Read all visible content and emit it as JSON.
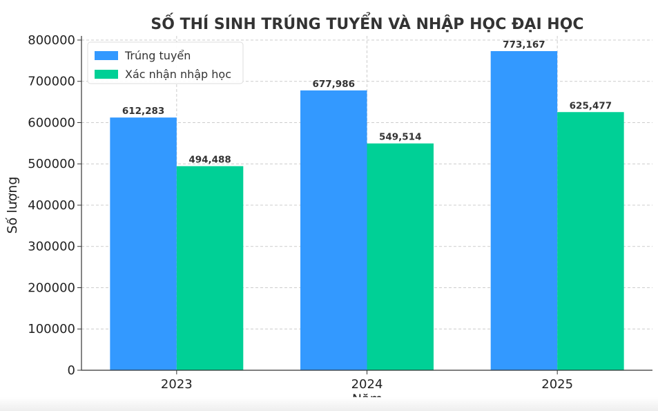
{
  "chart_data": {
    "type": "bar",
    "title": "SỐ THÍ SINH TRÚNG TUYỂN VÀ NHẬP HỌC ĐẠI HỌC",
    "xlabel": "Năm",
    "ylabel": "Số lượng",
    "categories": [
      "2023",
      "2024",
      "2025"
    ],
    "series": [
      {
        "name": "Trúng tuyển",
        "values": [
          612283,
          677986,
          773167
        ],
        "labels": [
          "612,283",
          "677,986",
          "773,167"
        ],
        "color": "#3399ff"
      },
      {
        "name": "Xác nhận nhập học",
        "values": [
          494488,
          549514,
          625477
        ],
        "labels": [
          "494,488",
          "549,514",
          "625,477"
        ],
        "color": "#00d096"
      }
    ],
    "ylim": [
      0,
      810000
    ],
    "yticks": [
      0,
      100000,
      200000,
      300000,
      400000,
      500000,
      600000,
      700000,
      800000
    ],
    "ytick_labels": [
      "0",
      "100000",
      "200000",
      "300000",
      "400000",
      "500000",
      "600000",
      "700000",
      "800000"
    ],
    "grid": true,
    "legend_position": "top-left"
  }
}
